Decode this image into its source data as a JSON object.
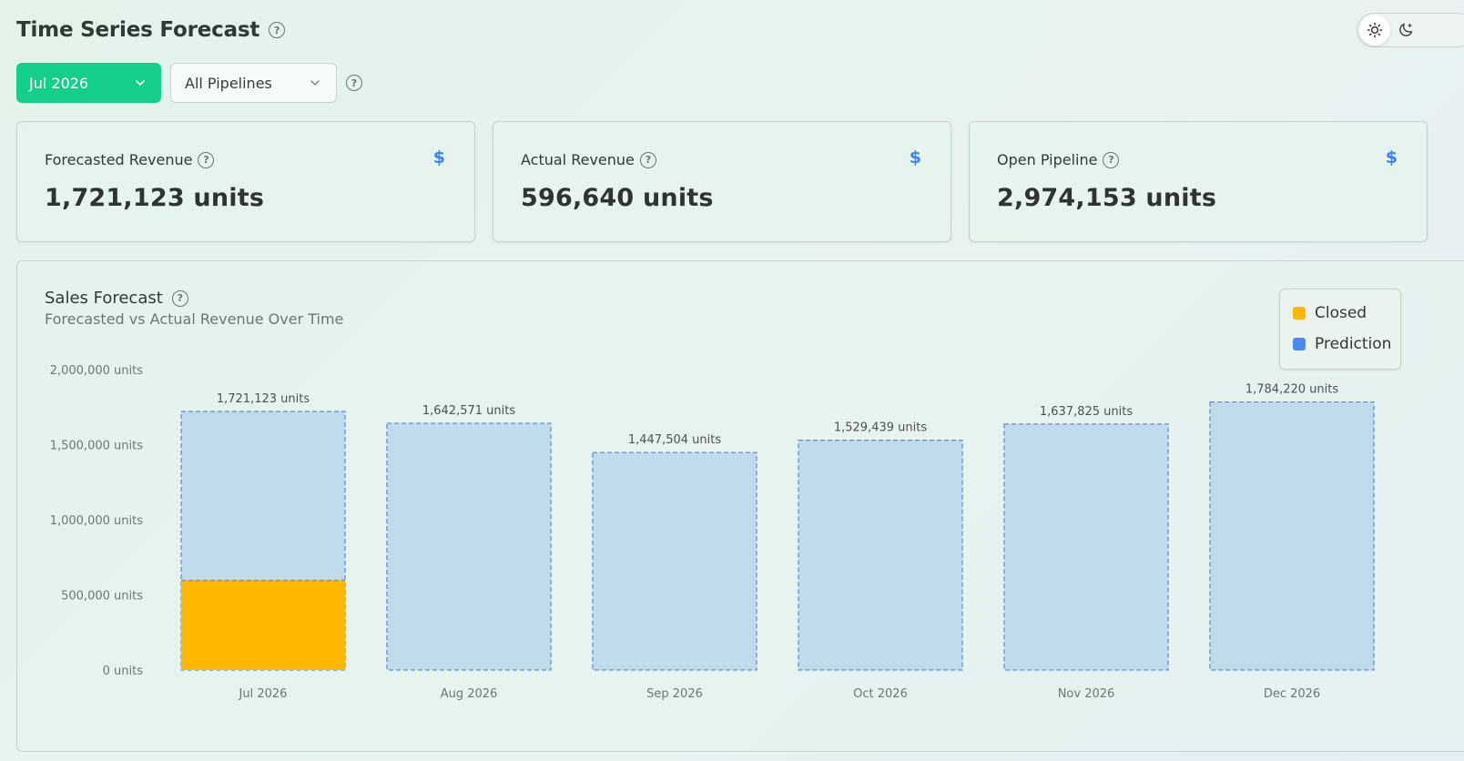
{
  "header": {
    "title": "Time Series Forecast",
    "help_icon": "question-circle-icon"
  },
  "theme_toggle": {
    "light_icon": "sun-icon",
    "dark_icon": "moon-icon",
    "active": "light"
  },
  "filters": {
    "period": {
      "value": "Jul 2026",
      "icon": "chevron-down-icon"
    },
    "pipeline": {
      "value": "All Pipelines",
      "icon": "chevron-down-icon"
    },
    "help_icon": "question-circle-icon"
  },
  "kpis": [
    {
      "label": "Forecasted Revenue",
      "value": "1,721,123 units",
      "icon": "dollar-icon"
    },
    {
      "label": "Actual Revenue",
      "value": "596,640 units",
      "icon": "dollar-icon"
    },
    {
      "label": "Open Pipeline",
      "value": "2,974,153 units",
      "icon": "dollar-icon"
    }
  ],
  "colors": {
    "accent": "#14cf8c",
    "closed": "#ffb700",
    "prediction": "#4a8af4",
    "prediction_fill": "#c0dcec",
    "prediction_border": "#5b8fea"
  },
  "chart_data": {
    "type": "bar",
    "title": "Sales Forecast",
    "subtitle": "Forecasted vs Actual Revenue Over Time",
    "xlabel": "",
    "ylabel": "",
    "categories": [
      "Jul 2026",
      "Aug 2026",
      "Sep 2026",
      "Oct 2026",
      "Nov 2026",
      "Dec 2026"
    ],
    "series": [
      {
        "name": "Closed",
        "values": [
          596640,
          0,
          0,
          0,
          0,
          0
        ]
      },
      {
        "name": "Prediction",
        "values": [
          1721123,
          1642571,
          1447504,
          1529439,
          1637825,
          1784220
        ]
      }
    ],
    "data_labels": [
      "1,721,123 units",
      "1,642,571 units",
      "1,447,504 units",
      "1,529,439 units",
      "1,637,825 units",
      "1,784,220 units"
    ],
    "ylim": [
      0,
      2000000
    ],
    "yticks": [
      0,
      500000,
      1000000,
      1500000,
      2000000
    ],
    "ytick_labels": [
      "0 units",
      "500,000 units",
      "1,000,000 units",
      "1,500,000 units",
      "2,000,000 units"
    ],
    "grid": false,
    "legend_position": "top-right"
  }
}
